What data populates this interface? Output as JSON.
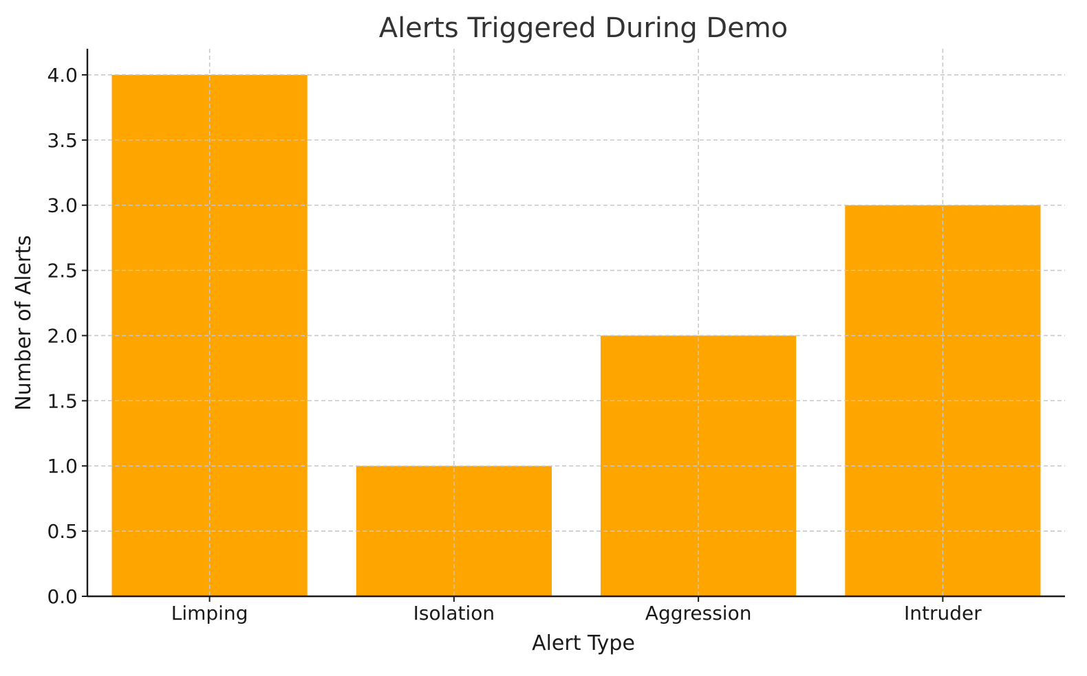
{
  "chart_data": {
    "type": "bar",
    "title": "Alerts Triggered During Demo",
    "xlabel": "Alert Type",
    "ylabel": "Number of Alerts",
    "categories": [
      "Limping",
      "Isolation",
      "Aggression",
      "Intruder"
    ],
    "values": [
      4,
      1,
      2,
      3
    ],
    "ylim": [
      0,
      4.2
    ],
    "yticks": [
      "0.0",
      "0.5",
      "1.0",
      "1.5",
      "2.0",
      "2.5",
      "3.0",
      "3.5",
      "4.0"
    ],
    "grid": true,
    "bar_color": "#FFA500"
  }
}
